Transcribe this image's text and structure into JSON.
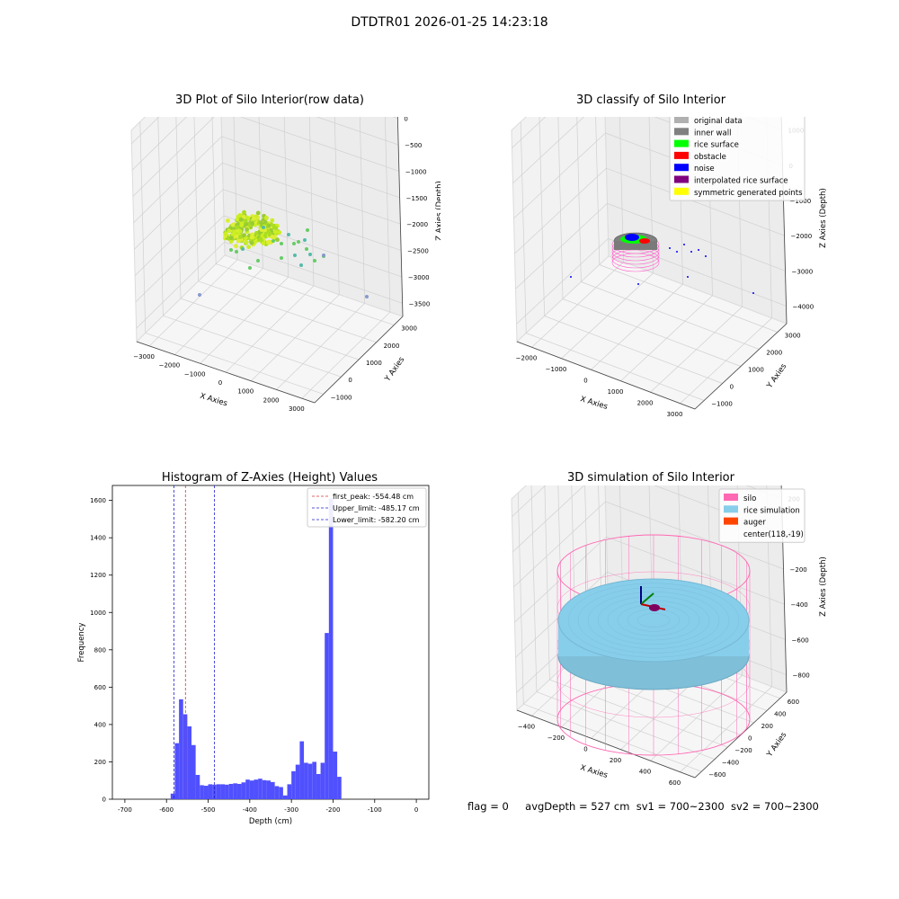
{
  "figure": {
    "suptitle": "DTDTR01 2026-01-25 14:23:18",
    "footer": {
      "flag": "flag = 0",
      "avg_depth": "avgDepth = 527 cm",
      "sv1": "sv1 = 700~2300",
      "sv2": "sv2 = 700~2300"
    }
  },
  "colors": {
    "hist_bar": "#5050ff",
    "first_peak_line": "#e03030",
    "limit_line": "#2020d0",
    "silo": "#ff69b4",
    "rice_simulation": "#87ceeb",
    "auger": "#ff4500",
    "pane": "#f2f2f2",
    "grid": "#d0d0d0"
  },
  "chart_data": [
    {
      "id": "raw3d",
      "type": "scatter3d",
      "title": "3D Plot of Silo Interior(row data)",
      "xlabel": "X Axies",
      "ylabel": "Y Axies",
      "zlabel": "Z Axies (Depth)",
      "x_ticks": [
        "−3000",
        "−2000",
        "−1000",
        "0",
        "1000",
        "2000",
        "3000"
      ],
      "y_ticks": [
        "−1000",
        "0",
        "1000",
        "2000",
        "3000"
      ],
      "z_ticks": [
        "0",
        "−500",
        "−1000",
        "−1500",
        "−2000",
        "−2500",
        "−3000",
        "−3500"
      ],
      "xlim": [
        -3000,
        3000
      ],
      "ylim": [
        -1500,
        3500
      ],
      "zlim": [
        -3800,
        0
      ]
    },
    {
      "id": "classify3d",
      "type": "scatter3d",
      "title": "3D classify of Silo Interior",
      "xlabel": "X Axies",
      "ylabel": "Y Axies",
      "zlabel": "Z Axies (Depth)",
      "x_ticks": [
        "−2000",
        "−1000",
        "0",
        "1000",
        "2000",
        "3000"
      ],
      "y_ticks": [
        "−1000",
        "0",
        "1000",
        "2000",
        "3000"
      ],
      "z_ticks": [
        "1000",
        "0",
        "−1000",
        "−2000",
        "−3000",
        "−4000"
      ],
      "xlim": [
        -2500,
        3000
      ],
      "ylim": [
        -1500,
        3500
      ],
      "zlim": [
        -4500,
        1000
      ],
      "legend_position": "top-right",
      "legend": [
        {
          "label": "original data",
          "color": "#b0b0b0"
        },
        {
          "label": "inner wall",
          "color": "#808080"
        },
        {
          "label": "rice surface",
          "color": "#00ff00"
        },
        {
          "label": "obstacle",
          "color": "#ff0000"
        },
        {
          "label": "noise",
          "color": "#0000ff"
        },
        {
          "label": "interpolated rice surface",
          "color": "#800080"
        },
        {
          "label": "symmetric generated points",
          "color": "#ffff00"
        }
      ]
    },
    {
      "id": "histogram",
      "type": "bar",
      "title": "Histogram of Z-Axies (Height) Values",
      "xlabel": "Depth (cm)",
      "ylabel": "Frequency",
      "xlim": [
        -730,
        30
      ],
      "ylim": [
        0,
        1680
      ],
      "x_ticks": [
        -700,
        -600,
        -500,
        -400,
        -300,
        -200,
        -100,
        0
      ],
      "y_ticks": [
        0,
        200,
        400,
        600,
        800,
        1000,
        1200,
        1400,
        1600
      ],
      "bin_start": -590,
      "bin_width": 10,
      "values": [
        30,
        300,
        535,
        455,
        390,
        290,
        130,
        75,
        72,
        80,
        78,
        80,
        80,
        78,
        82,
        85,
        82,
        90,
        105,
        100,
        105,
        110,
        102,
        100,
        92,
        70,
        65,
        20,
        80,
        150,
        185,
        310,
        195,
        190,
        200,
        135,
        195,
        890,
        1610,
        255,
        120
      ],
      "vlines": [
        {
          "label": "first_peak: -554.48 cm",
          "x": -554.48,
          "color": "#e03030"
        },
        {
          "label": "Upper_limit: -485.17 cm",
          "x": -485.17,
          "color": "#2020d0"
        },
        {
          "label": "Lower_limit: -582.20 cm",
          "x": -582.2,
          "color": "#2020d0"
        }
      ],
      "legend_position": "top-right"
    },
    {
      "id": "sim3d",
      "type": "surface3d",
      "title": "3D simulation of Silo Interior",
      "xlabel": "X Axies",
      "ylabel": "Y Axies",
      "zlabel": "Z Axies (Depth)",
      "x_ticks": [
        "−400",
        "−200",
        "0",
        "200",
        "400",
        "600"
      ],
      "y_ticks": [
        "−600",
        "−400",
        "−200",
        "0",
        "200",
        "400",
        "600"
      ],
      "z_ticks": [
        "200",
        "0",
        "−200",
        "−400",
        "−600",
        "−800"
      ],
      "xlim": [
        -500,
        700
      ],
      "ylim": [
        -700,
        700
      ],
      "zlim": [
        -950,
        300
      ],
      "legend_position": "top-right",
      "legend": [
        {
          "label": "silo",
          "color": "#ff69b4"
        },
        {
          "label": "rice simulation",
          "color": "#87ceeb"
        },
        {
          "label": "auger",
          "color": "#ff4500"
        },
        {
          "label": "center(118,-19)",
          "color": ""
        }
      ]
    }
  ]
}
